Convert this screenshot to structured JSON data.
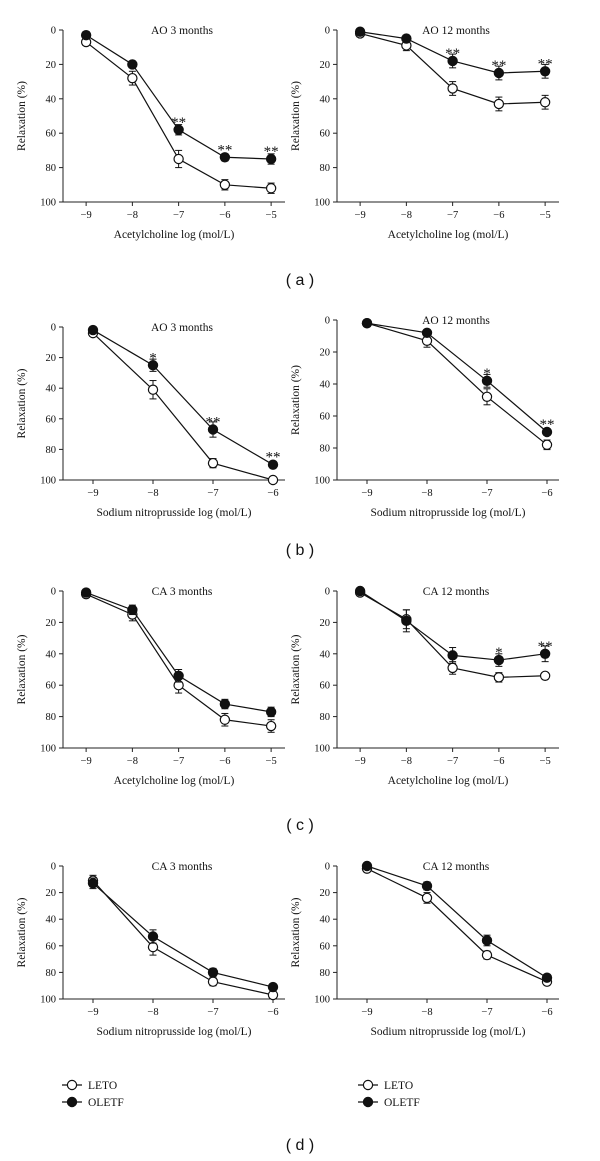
{
  "chart_data": [
    {
      "type": "line",
      "panel": "a",
      "title": "AO    3 months",
      "xlabel": "Acetylcholine log (mol/L)",
      "ylabel": "Relaxation (%)",
      "x_ticks": [
        "-9",
        "-8",
        "-7",
        "-6",
        "-5"
      ],
      "y_ticks": [
        "0",
        "20",
        "40",
        "60",
        "80",
        "100"
      ],
      "xlim": [
        -9.5,
        -4.7
      ],
      "ylim": [
        0,
        100
      ],
      "y_inverted": true,
      "series": [
        {
          "name": "LETO",
          "marker": "open",
          "x": [
            -9,
            -8,
            -7,
            -6,
            -5
          ],
          "values": [
            7,
            28,
            75,
            90,
            92
          ],
          "err": [
            2,
            4,
            5,
            3,
            3
          ]
        },
        {
          "name": "OLETF",
          "marker": "filled",
          "x": [
            -9,
            -8,
            -7,
            -6,
            -5
          ],
          "values": [
            3,
            20,
            58,
            74,
            75
          ],
          "err": [
            2,
            2,
            3,
            2,
            3
          ]
        }
      ],
      "annotations": [
        {
          "x": -7,
          "y": 58,
          "text": "**"
        },
        {
          "x": -6,
          "y": 74,
          "text": "**"
        },
        {
          "x": -5,
          "y": 75,
          "text": "**"
        }
      ]
    },
    {
      "type": "line",
      "panel": "a",
      "title": "AO    12 months",
      "xlabel": "Acetylcholine log (mol/L)",
      "ylabel": "Relaxation (%)",
      "x_ticks": [
        "-9",
        "-8",
        "-7",
        "-6",
        "-5"
      ],
      "y_ticks": [
        "0",
        "20",
        "40",
        "60",
        "80",
        "100"
      ],
      "xlim": [
        -9.5,
        -4.7
      ],
      "ylim": [
        0,
        100
      ],
      "y_inverted": true,
      "series": [
        {
          "name": "LETO",
          "marker": "open",
          "x": [
            -9,
            -8,
            -7,
            -6,
            -5
          ],
          "values": [
            2,
            9,
            34,
            43,
            42
          ],
          "err": [
            2,
            3,
            4,
            4,
            4
          ]
        },
        {
          "name": "OLETF",
          "marker": "filled",
          "x": [
            -9,
            -8,
            -7,
            -6,
            -5
          ],
          "values": [
            1,
            5,
            18,
            25,
            24
          ],
          "err": [
            1,
            2,
            4,
            4,
            4
          ]
        }
      ],
      "annotations": [
        {
          "x": -7,
          "y": 18,
          "text": "**"
        },
        {
          "x": -6,
          "y": 25,
          "text": "**"
        },
        {
          "x": -5,
          "y": 24,
          "text": "**"
        }
      ]
    },
    {
      "type": "line",
      "panel": "b",
      "title": "AO    3 months",
      "xlabel": "Sodium nitroprusside log (mol/L)",
      "ylabel": "Relaxation (%)",
      "x_ticks": [
        "-9",
        "-8",
        "-7",
        "-6"
      ],
      "y_ticks": [
        "0",
        "20",
        "40",
        "60",
        "80",
        "100"
      ],
      "xlim": [
        -9.5,
        -5.8
      ],
      "ylim": [
        0,
        100
      ],
      "y_inverted": true,
      "series": [
        {
          "name": "LETO",
          "marker": "open",
          "x": [
            -9,
            -8,
            -7,
            -6
          ],
          "values": [
            4,
            41,
            89,
            100
          ],
          "err": [
            2,
            6,
            3,
            1
          ]
        },
        {
          "name": "OLETF",
          "marker": "filled",
          "x": [
            -9,
            -8,
            -7,
            -6
          ],
          "values": [
            2,
            25,
            67,
            90
          ],
          "err": [
            1,
            4,
            5,
            2
          ]
        }
      ],
      "annotations": [
        {
          "x": -8,
          "y": 25,
          "text": "*"
        },
        {
          "x": -7,
          "y": 67,
          "text": "**"
        },
        {
          "x": -6,
          "y": 90,
          "text": "**"
        }
      ]
    },
    {
      "type": "line",
      "panel": "b",
      "title": "AO    12 months",
      "xlabel": "Sodium nitroprusside log (mol/L)",
      "ylabel": "Relaxation (%)",
      "x_ticks": [
        "-9",
        "-8",
        "-7",
        "-6"
      ],
      "y_ticks": [
        "0",
        "20",
        "40",
        "60",
        "80",
        "100"
      ],
      "xlim": [
        -9.5,
        -5.8
      ],
      "ylim": [
        0,
        100
      ],
      "y_inverted": true,
      "series": [
        {
          "name": "LETO",
          "marker": "open",
          "x": [
            -9,
            -8,
            -7,
            -6
          ],
          "values": [
            2,
            13,
            48,
            78
          ],
          "err": [
            2,
            4,
            5,
            3
          ]
        },
        {
          "name": "OLETF",
          "marker": "filled",
          "x": [
            -9,
            -8,
            -7,
            -6
          ],
          "values": [
            2,
            8,
            38,
            70
          ],
          "err": [
            1,
            2,
            4,
            2
          ]
        }
      ],
      "annotations": [
        {
          "x": -7,
          "y": 38,
          "text": "*"
        },
        {
          "x": -6,
          "y": 70,
          "text": "**"
        }
      ]
    },
    {
      "type": "line",
      "panel": "c",
      "title": "CA    3 months",
      "xlabel": "Acetylcholine log (mol/L)",
      "ylabel": "Relaxation (%)",
      "x_ticks": [
        "-9",
        "-8",
        "-7",
        "-6",
        "-5"
      ],
      "y_ticks": [
        "0",
        "20",
        "40",
        "60",
        "80",
        "100"
      ],
      "xlim": [
        -9.5,
        -4.7
      ],
      "ylim": [
        0,
        100
      ],
      "y_inverted": true,
      "series": [
        {
          "name": "LETO",
          "marker": "open",
          "x": [
            -9,
            -8,
            -7,
            -6,
            -5
          ],
          "values": [
            2,
            15,
            60,
            82,
            86
          ],
          "err": [
            2,
            4,
            5,
            4,
            4
          ]
        },
        {
          "name": "OLETF",
          "marker": "filled",
          "x": [
            -9,
            -8,
            -7,
            -6,
            -5
          ],
          "values": [
            1,
            12,
            54,
            72,
            77
          ],
          "err": [
            1,
            3,
            4,
            3,
            3
          ]
        }
      ],
      "annotations": []
    },
    {
      "type": "line",
      "panel": "c",
      "title": "CA    12 months",
      "xlabel": "Acetylcholine log (mol/L)",
      "ylabel": "Relaxation (%)",
      "x_ticks": [
        "-9",
        "-8",
        "-7",
        "-6",
        "-5"
      ],
      "y_ticks": [
        "0",
        "20",
        "40",
        "60",
        "80",
        "100"
      ],
      "xlim": [
        -9.5,
        -4.7
      ],
      "ylim": [
        0,
        100
      ],
      "y_inverted": true,
      "series": [
        {
          "name": "LETO",
          "marker": "open",
          "x": [
            -9,
            -8,
            -7,
            -6,
            -5
          ],
          "values": [
            1,
            18,
            49,
            55,
            54
          ],
          "err": [
            1,
            6,
            4,
            3,
            2
          ]
        },
        {
          "name": "OLETF",
          "marker": "filled",
          "x": [
            -9,
            -8,
            -7,
            -6,
            -5
          ],
          "values": [
            0,
            19,
            41,
            44,
            40
          ],
          "err": [
            1,
            7,
            5,
            4,
            5
          ]
        }
      ],
      "annotations": [
        {
          "x": -6,
          "y": 44,
          "text": "*"
        },
        {
          "x": -5,
          "y": 40,
          "text": "**"
        }
      ]
    },
    {
      "type": "line",
      "panel": "d",
      "title": "CA    3 months",
      "xlabel": "Sodium nitroprusside log (mol/L)",
      "ylabel": "Relaxation (%)",
      "x_ticks": [
        "-9",
        "-8",
        "-7",
        "-6"
      ],
      "y_ticks": [
        "0",
        "20",
        "40",
        "60",
        "80",
        "100"
      ],
      "xlim": [
        -9.5,
        -5.8
      ],
      "ylim": [
        0,
        100
      ],
      "y_inverted": true,
      "series": [
        {
          "name": "LETO",
          "marker": "open",
          "x": [
            -9,
            -8,
            -7,
            -6
          ],
          "values": [
            11,
            61,
            87,
            97
          ],
          "err": [
            4,
            6,
            3,
            2
          ]
        },
        {
          "name": "OLETF",
          "marker": "filled",
          "x": [
            -9,
            -8,
            -7,
            -6
          ],
          "values": [
            13,
            53,
            80,
            91
          ],
          "err": [
            4,
            5,
            3,
            2
          ]
        }
      ],
      "annotations": []
    },
    {
      "type": "line",
      "panel": "d",
      "title": "CA    12 months",
      "xlabel": "Sodium nitroprusside log (mol/L)",
      "ylabel": "Relaxation (%)",
      "x_ticks": [
        "-9",
        "-8",
        "-7",
        "-6"
      ],
      "y_ticks": [
        "0",
        "20",
        "40",
        "60",
        "80",
        "100"
      ],
      "xlim": [
        -9.5,
        -5.8
      ],
      "ylim": [
        0,
        100
      ],
      "y_inverted": true,
      "series": [
        {
          "name": "LETO",
          "marker": "open",
          "x": [
            -9,
            -8,
            -7,
            -6
          ],
          "values": [
            2,
            24,
            67,
            87
          ],
          "err": [
            2,
            4,
            3,
            2
          ]
        },
        {
          "name": "OLETF",
          "marker": "filled",
          "x": [
            -9,
            -8,
            -7,
            -6
          ],
          "values": [
            0,
            15,
            56,
            84
          ],
          "err": [
            1,
            3,
            4,
            2
          ]
        }
      ],
      "annotations": []
    }
  ],
  "panel_labels": [
    "( a )",
    "( b )",
    "( c )",
    "( d )"
  ],
  "legend": [
    {
      "label": "LETO",
      "marker": "open"
    },
    {
      "label": "OLETF",
      "marker": "filled"
    }
  ]
}
